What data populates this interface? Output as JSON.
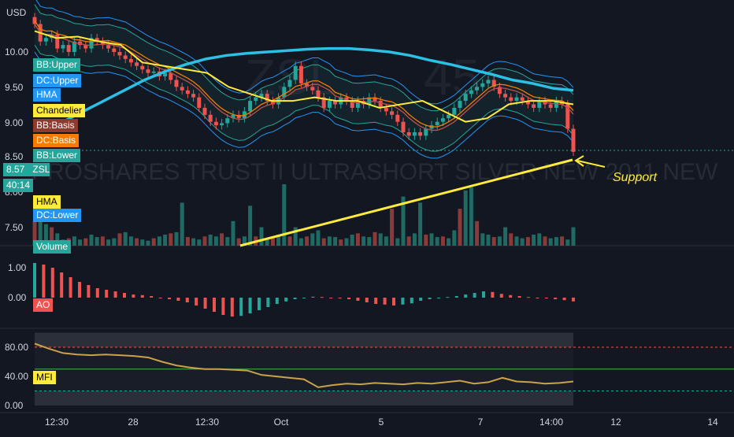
{
  "currency": "USD",
  "watermark": {
    "symbol": "ZSL",
    "interval": "45",
    "name": "PROSHARES TRUST II ULTRASHORT SILVER NEW 2011 NEW"
  },
  "price_tags": {
    "price": "8.57",
    "ticker": "ZSL",
    "countdown": "40:14"
  },
  "indicator_labels": [
    {
      "text": "BB:Upper",
      "bg": "#26a69a",
      "fg": "#ffffff"
    },
    {
      "text": "DC:Upper",
      "bg": "#2196f3",
      "fg": "#ffffff"
    },
    {
      "text": "HMA",
      "bg": "#2196f3",
      "fg": "#ffffff"
    },
    {
      "text": "Chandelier",
      "bg": "#ffeb3b",
      "fg": "#000000"
    },
    {
      "text": "BB:Basis",
      "bg": "#8d3b2f",
      "fg": "#ffffff"
    },
    {
      "text": "DC:Basis",
      "bg": "#f57c00",
      "fg": "#ffffff"
    },
    {
      "text": "BB:Lower",
      "bg": "#26a69a",
      "fg": "#ffffff"
    },
    {
      "text": "HMA",
      "bg": "#ffeb3b",
      "fg": "#000000"
    },
    {
      "text": "DC:Lower",
      "bg": "#2196f3",
      "fg": "#ffffff"
    },
    {
      "text": "Volume",
      "bg": "#26a69a",
      "fg": "#ffffff"
    }
  ],
  "annotation": {
    "text": "Support"
  },
  "colors": {
    "background": "#131722",
    "up": "#26a69a",
    "down": "#ef5350",
    "hma_long": "#2bc0e4",
    "chandelier": "#ffeb3b",
    "bb_basis": "#c0504d",
    "dc_basis": "#f57c00",
    "bb_band": "#26a69a",
    "dc_band": "#2196f3",
    "mfi_line": "#c9a24a",
    "trendline": "#ffeb3b"
  },
  "chart_data": [
    {
      "type": "candlestick",
      "pane": "price",
      "y_ticks": [
        "10.00",
        "9.50",
        "9.00",
        "8.50",
        "8.00",
        "7.50"
      ],
      "ylim": [
        7.5,
        10.5
      ],
      "close": [
        10.4,
        10.15,
        10.2,
        10.25,
        10.05,
        10.1,
        10.0,
        10.15,
        10.1,
        10.05,
        10.2,
        10.15,
        10.1,
        10.05,
        10.0,
        9.95,
        9.9,
        9.85,
        9.8,
        9.75,
        9.7,
        9.72,
        9.65,
        9.7,
        9.6,
        9.5,
        9.45,
        9.4,
        9.35,
        9.2,
        9.1,
        9.0,
        8.95,
        8.98,
        9.05,
        9.1,
        9.05,
        9.15,
        9.3,
        9.35,
        9.4,
        9.3,
        9.25,
        9.35,
        9.5,
        9.6,
        9.8,
        9.55,
        9.5,
        9.45,
        9.35,
        9.2,
        9.3,
        9.25,
        9.35,
        9.3,
        9.2,
        9.3,
        9.25,
        9.35,
        9.3,
        9.2,
        9.15,
        9.1,
        9.0,
        8.85,
        8.8,
        8.85,
        8.8,
        8.9,
        8.95,
        9.0,
        9.05,
        9.1,
        9.2,
        9.3,
        9.4,
        9.45,
        9.5,
        9.55,
        9.6,
        9.5,
        9.4,
        9.35,
        9.3,
        9.35,
        9.3,
        9.25,
        9.2,
        9.3,
        9.25,
        9.2,
        9.3,
        9.25,
        8.9,
        8.57
      ],
      "series_values": {
        "HMA long": [
          9.0,
          9.15,
          9.3,
          9.45,
          9.6,
          9.72,
          9.82,
          9.9,
          9.95,
          9.98,
          10.0,
          10.02,
          10.04,
          10.05,
          10.05,
          10.03,
          10.0,
          9.95,
          9.88,
          9.82,
          9.75,
          9.68,
          9.6,
          9.55,
          9.48,
          9.45
        ],
        "Chandelier": [
          10.3,
          10.2,
          10.22,
          10.15,
          10.1,
          9.85,
          9.8,
          9.75,
          9.7,
          9.5,
          9.4,
          9.3,
          9.3,
          9.35,
          9.3,
          9.3,
          9.2,
          9.25,
          9.3,
          9.15,
          9.0,
          9.05,
          9.25,
          9.3,
          9.3,
          9.25
        ]
      }
    },
    {
      "type": "bar",
      "pane": "volume",
      "values": [
        40,
        45,
        35,
        30,
        20,
        10,
        12,
        15,
        10,
        12,
        18,
        14,
        15,
        10,
        12,
        20,
        22,
        15,
        12,
        10,
        8,
        12,
        15,
        18,
        20,
        22,
        70,
        14,
        12,
        10,
        15,
        18,
        15,
        20,
        14,
        40,
        12,
        15,
        65,
        15,
        30,
        12,
        14,
        18,
        100,
        15,
        30,
        12,
        15,
        20,
        25,
        12,
        15,
        14,
        10,
        12,
        18,
        20,
        15,
        14,
        22,
        20,
        15,
        60,
        12,
        80,
        15,
        20,
        70,
        18,
        20,
        14,
        15,
        12,
        25,
        60,
        90,
        95,
        40,
        20,
        18,
        14,
        15,
        30,
        20,
        15,
        12,
        14,
        18,
        20,
        15,
        12,
        14,
        15,
        10,
        30
      ]
    },
    {
      "type": "bar",
      "pane": "AO",
      "y_ticks": [
        "1.00",
        "0.00"
      ],
      "values": [
        1.1,
        1.05,
        0.95,
        0.8,
        0.65,
        0.5,
        0.4,
        0.3,
        0.25,
        0.2,
        0.15,
        0.1,
        0.08,
        0.05,
        0.0,
        -0.05,
        -0.1,
        -0.15,
        -0.25,
        -0.35,
        -0.45,
        -0.55,
        -0.6,
        -0.58,
        -0.5,
        -0.4,
        -0.3,
        -0.2,
        -0.12,
        -0.05,
        0.0,
        0.03,
        0.02,
        0.0,
        -0.02,
        -0.05,
        -0.1,
        -0.15,
        -0.2,
        -0.22,
        -0.25,
        -0.22,
        -0.18,
        -0.1,
        -0.05,
        0.0,
        0.02,
        0.05,
        0.1,
        0.15,
        0.2,
        0.18,
        0.12,
        0.08,
        0.05,
        0.02,
        0.0,
        -0.02,
        -0.05,
        -0.08,
        -0.12
      ]
    },
    {
      "type": "line",
      "pane": "MFI",
      "y_ticks": [
        "80.00",
        "40.00",
        "0.00"
      ],
      "ylim": [
        0,
        100
      ],
      "values": [
        85,
        78,
        72,
        70,
        69,
        70,
        69,
        68,
        66,
        60,
        55,
        52,
        50,
        50,
        49,
        48,
        42,
        40,
        38,
        36,
        25,
        28,
        30,
        29,
        31,
        30,
        29,
        31,
        30,
        32,
        34,
        30,
        32,
        38,
        33,
        32,
        30,
        31,
        33
      ]
    }
  ],
  "x_axis": {
    "labels": [
      "12:30",
      "28",
      "12:30",
      "Oct",
      "5",
      "7",
      "14:00",
      "12",
      "14"
    ]
  }
}
